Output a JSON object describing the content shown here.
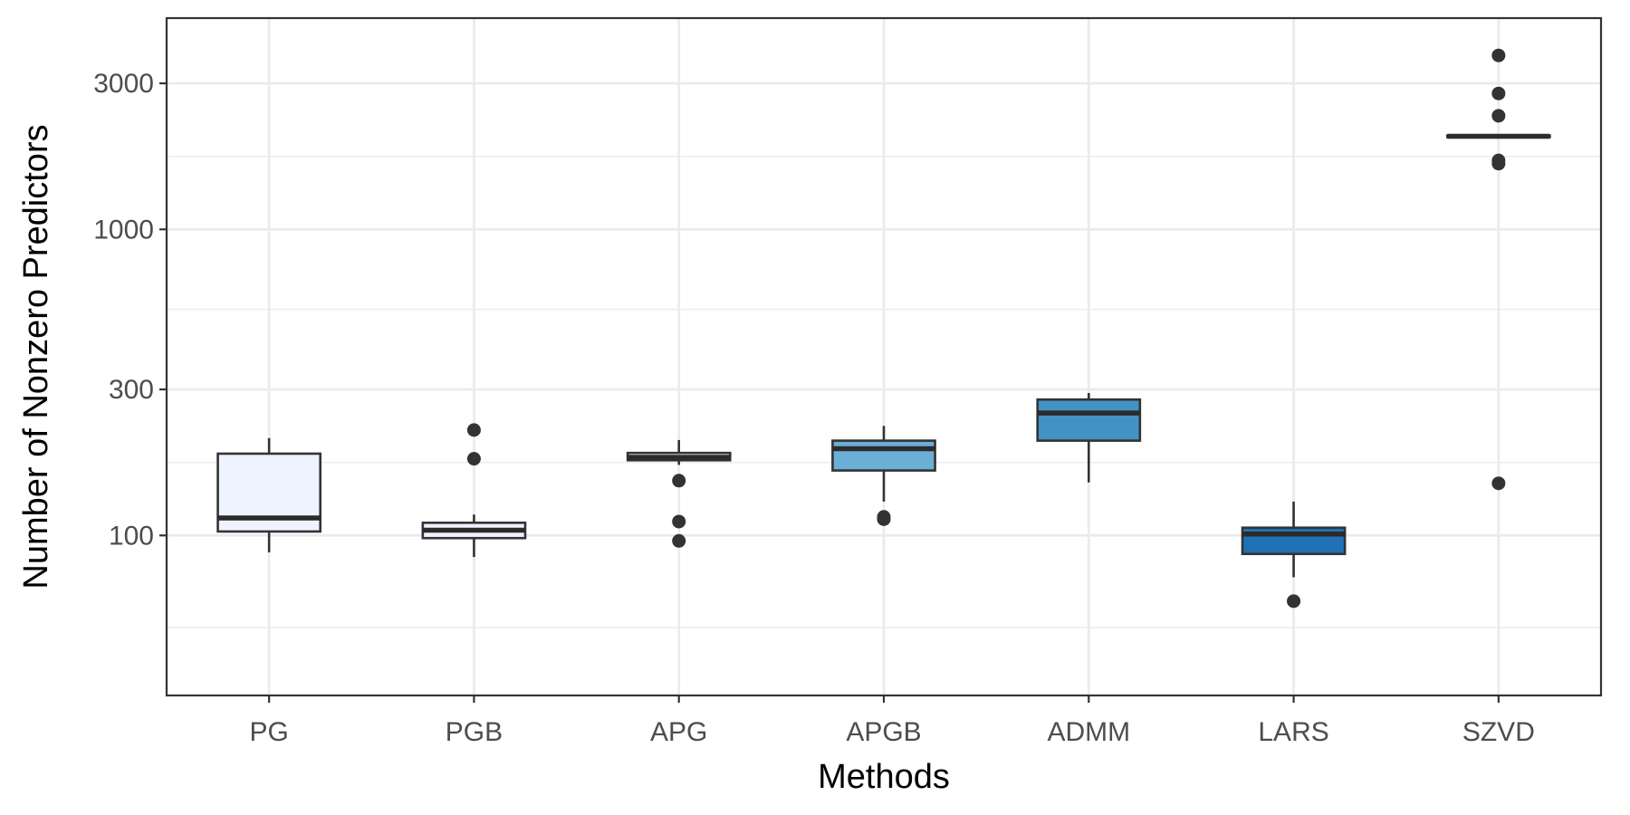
{
  "chart_data": {
    "type": "boxplot",
    "title": "",
    "xlabel": "Methods",
    "ylabel": "Number of Nonzero Predictors",
    "yscale": "log10",
    "ylim": [
      30,
      4900
    ],
    "yticks": [
      100,
      300,
      1000,
      3000
    ],
    "ytick_labels": [
      "100",
      "300",
      "1000",
      "3000"
    ],
    "ygrid_minor": [
      50,
      173,
      548,
      1732
    ],
    "grid": true,
    "legend": "none",
    "categories": [
      "PG",
      "PGB",
      "APG",
      "APGB",
      "ADMM",
      "LARS",
      "SZVD"
    ],
    "boxes": [
      {
        "category": "PG",
        "color": "#eff3ff",
        "median_color": "#2b2b2b",
        "whisker_low": 88,
        "q1": 103,
        "median": 114,
        "q3": 185,
        "whisker_high": 208,
        "outliers": []
      },
      {
        "category": "PGB",
        "color": "#eff3ff",
        "median_color": "#2b2b2b",
        "whisker_low": 85,
        "q1": 98,
        "median": 104,
        "q3": 110,
        "whisker_high": 117,
        "outliers": [
          221,
          178
        ]
      },
      {
        "category": "APG",
        "color": "#ffffff",
        "median_color": "#2b2b2b",
        "whisker_low": 170,
        "q1": 176,
        "median": 180,
        "q3": 186,
        "whisker_high": 205,
        "outliers": [
          151,
          111,
          96
        ]
      },
      {
        "category": "APGB",
        "color": "#6baed6",
        "median_color": "#2b2b2b",
        "whisker_low": 129,
        "q1": 163,
        "median": 192,
        "q3": 204,
        "whisker_high": 228,
        "outliers": [
          113,
          115
        ]
      },
      {
        "category": "ADMM",
        "color": "#4292c6",
        "median_color": "#2b2b2b",
        "whisker_low": 149,
        "q1": 204,
        "median": 251,
        "q3": 278,
        "whisker_high": 292,
        "outliers": []
      },
      {
        "category": "LARS",
        "color": "#2171b5",
        "median_color": "#2b2b2b",
        "whisker_low": 73,
        "q1": 87,
        "median": 101,
        "q3": 106,
        "whisker_high": 129,
        "outliers": [
          61
        ]
      },
      {
        "category": "SZVD",
        "color": "#084594",
        "median_color": "#2b2b2b",
        "whisker_low": 1993,
        "q1": 2002,
        "median": 2015,
        "q3": 2025,
        "whisker_high": 2035,
        "outliers": [
          3700,
          2780,
          2350,
          1680,
          1640,
          148
        ]
      }
    ]
  }
}
